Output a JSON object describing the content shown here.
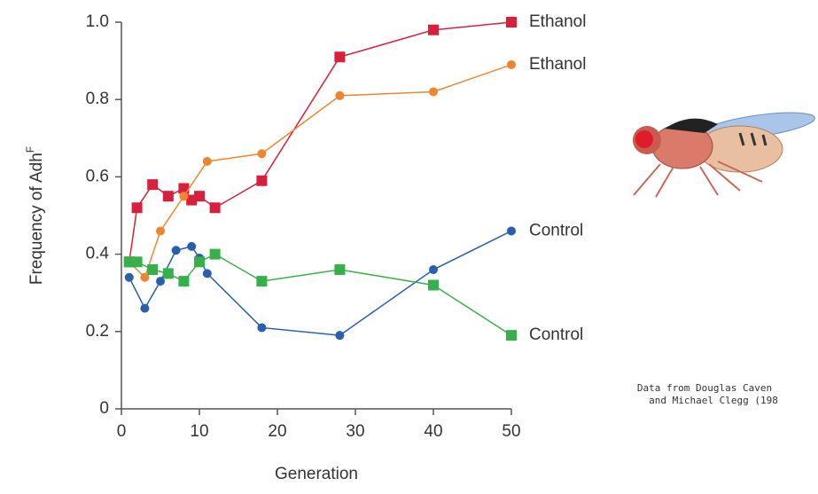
{
  "chart_data": {
    "type": "line",
    "xlabel": "Generation",
    "ylabel": {
      "text": "Frequency of Adh",
      "superscript": "F"
    },
    "xlim": [
      0,
      50
    ],
    "xticks": [
      0,
      10,
      20,
      30,
      40,
      50
    ],
    "ylim": [
      0,
      1
    ],
    "yticks": [
      0,
      0.2,
      0.4,
      0.6,
      0.8,
      {
        "value": 1,
        "label": "1.0"
      }
    ],
    "grid": false,
    "series": [
      {
        "name": "Ethanol",
        "color": "#d81f3c",
        "marker": "square",
        "x": [
          1,
          2,
          4,
          6,
          8,
          9,
          10,
          12,
          18,
          28,
          40,
          50
        ],
        "values": [
          0.38,
          0.52,
          0.58,
          0.55,
          0.57,
          0.54,
          0.55,
          0.52,
          0.59,
          0.91,
          0.98,
          1.0
        ]
      },
      {
        "name": "Ethanol",
        "color": "#f0852f",
        "marker": "circle",
        "x": [
          1,
          3,
          5,
          8,
          11,
          18,
          28,
          40,
          50
        ],
        "values": [
          0.38,
          0.34,
          0.46,
          0.55,
          0.64,
          0.66,
          0.81,
          0.82,
          0.89
        ]
      },
      {
        "name": "Control",
        "color": "#2a5fb0",
        "marker": "circle",
        "x": [
          1,
          3,
          5,
          7,
          9,
          10,
          11,
          18,
          28,
          40,
          50
        ],
        "values": [
          0.34,
          0.26,
          0.33,
          0.41,
          0.42,
          0.39,
          0.35,
          0.21,
          0.19,
          0.36,
          0.46
        ]
      },
      {
        "name": "Control",
        "color": "#35b04a",
        "marker": "square",
        "x": [
          1,
          2,
          4,
          6,
          8,
          10,
          12,
          18,
          28,
          40,
          50
        ],
        "values": [
          0.38,
          0.38,
          0.36,
          0.35,
          0.33,
          0.38,
          0.4,
          0.33,
          0.36,
          0.32,
          0.19
        ]
      }
    ],
    "note": [
      "Data from  Douglas Caven",
      "and Michael Clegg (198"
    ]
  }
}
